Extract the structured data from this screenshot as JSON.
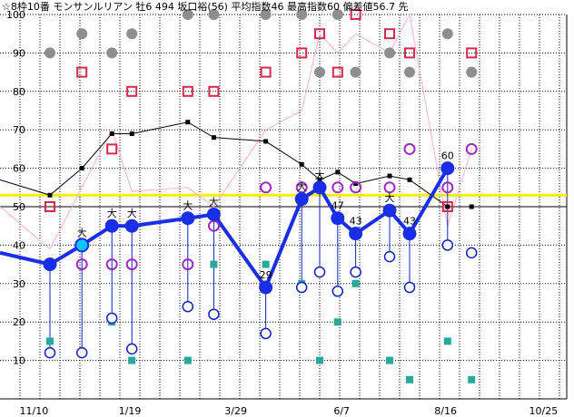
{
  "chart_data": {
    "type": "line",
    "header": "☆8枠10番 モンサンルリアン 牡6 494 坂口裕(56) 平均指数46 最高指数60 偏差値56.7 先",
    "ylim": [
      0,
      100
    ],
    "y_ticks": [
      10,
      20,
      30,
      40,
      50,
      60,
      70,
      80,
      90,
      100
    ],
    "x_ticks": [
      "11/10",
      "1/19",
      "3/29",
      "6/7",
      "8/16",
      "10/25"
    ],
    "reference_line": 53,
    "baseline": 50,
    "races": [
      {
        "pos": 2.5,
        "index": 35,
        "low": 12,
        "label": "",
        "top": 53,
        "pink": 39,
        "red": 50,
        "gray": 90,
        "teal": 15,
        "purple": 35
      },
      {
        "pos": 4.1,
        "index": 40,
        "low": 12,
        "label": "大",
        "top": 60,
        "pink": 55,
        "red": 85,
        "gray": 95,
        "teal": null,
        "purple": 35
      },
      {
        "pos": 5.6,
        "index": 45,
        "low": 21,
        "label": "大",
        "top": 69,
        "pink": 70,
        "red": 65,
        "gray": 90,
        "teal": 20,
        "purple": 35
      },
      {
        "pos": 6.6,
        "index": 45,
        "low": 13,
        "label": "大",
        "top": 69,
        "pink": 54,
        "red": 80,
        "gray": 95,
        "teal": 10,
        "purple": 35
      },
      {
        "pos": 9.4,
        "index": 47,
        "low": 24,
        "label": "大",
        "top": 72,
        "pink": 55,
        "red": 80,
        "gray": 100,
        "teal": 10,
        "purple": 35
      },
      {
        "pos": 10.7,
        "index": 48,
        "low": 22,
        "label": "大",
        "top": 68,
        "pink": 50,
        "red": 80,
        "gray": 100,
        "teal": 35,
        "purple": 45
      },
      {
        "pos": 13.3,
        "index": 29,
        "low": 17,
        "label": "29",
        "top": 67,
        "pink": 70,
        "red": 85,
        "gray": 100,
        "teal": 35,
        "purple": 55
      },
      {
        "pos": 15.1,
        "index": 52,
        "low": 29,
        "label": "大",
        "top": 61,
        "pink": 75,
        "red": 90,
        "gray": 100,
        "teal": 30,
        "purple": 55
      },
      {
        "pos": 16.0,
        "index": 55,
        "low": 33,
        "label": "大",
        "top": 57,
        "pink": 95,
        "red": 95,
        "gray": 85,
        "teal": 10,
        "purple": 55
      },
      {
        "pos": 16.9,
        "index": 47,
        "low": 28,
        "label": "47",
        "top": 59,
        "pink": 90,
        "red": 85,
        "gray": 100,
        "teal": 20,
        "purple": 55
      },
      {
        "pos": 17.8,
        "index": 43,
        "low": 33,
        "label": "43",
        "top": 56,
        "pink": 95,
        "red": 100,
        "gray": 85,
        "teal": 30,
        "purple": 55
      },
      {
        "pos": 19.5,
        "index": 49,
        "low": 37,
        "label": "大",
        "top": 58,
        "pink": 90,
        "red": 95,
        "gray": 90,
        "teal": 10,
        "purple": 55
      },
      {
        "pos": 20.5,
        "index": 43,
        "low": 29,
        "label": "43",
        "top": 57,
        "pink": 100,
        "red": 90,
        "gray": 85,
        "teal": 5,
        "purple": 65
      },
      {
        "pos": 22.4,
        "index": 60,
        "low": 40,
        "label": "60",
        "top": 50,
        "pink": 45,
        "red": 50,
        "gray": 95,
        "teal": 15,
        "purple": 55
      },
      {
        "pos": 23.6,
        "index": null,
        "low": 38,
        "label": "",
        "top": 50,
        "pink": 65,
        "red": 90,
        "gray": 85,
        "teal": 5,
        "purple": 65
      }
    ],
    "lead_in": {
      "pos": 0,
      "index": 38,
      "top": 57,
      "pink": 50
    },
    "colors": {
      "main": "#1a2ee8",
      "low": "#1020c0",
      "top": "#000000",
      "pink": "#ffb6c8",
      "red": "#d8284e",
      "gray": "#8e8e8e",
      "teal": "#2aa89a",
      "purple": "#9a2cbe",
      "ref": "#ffee00",
      "cyan": "#00c8ff"
    }
  }
}
